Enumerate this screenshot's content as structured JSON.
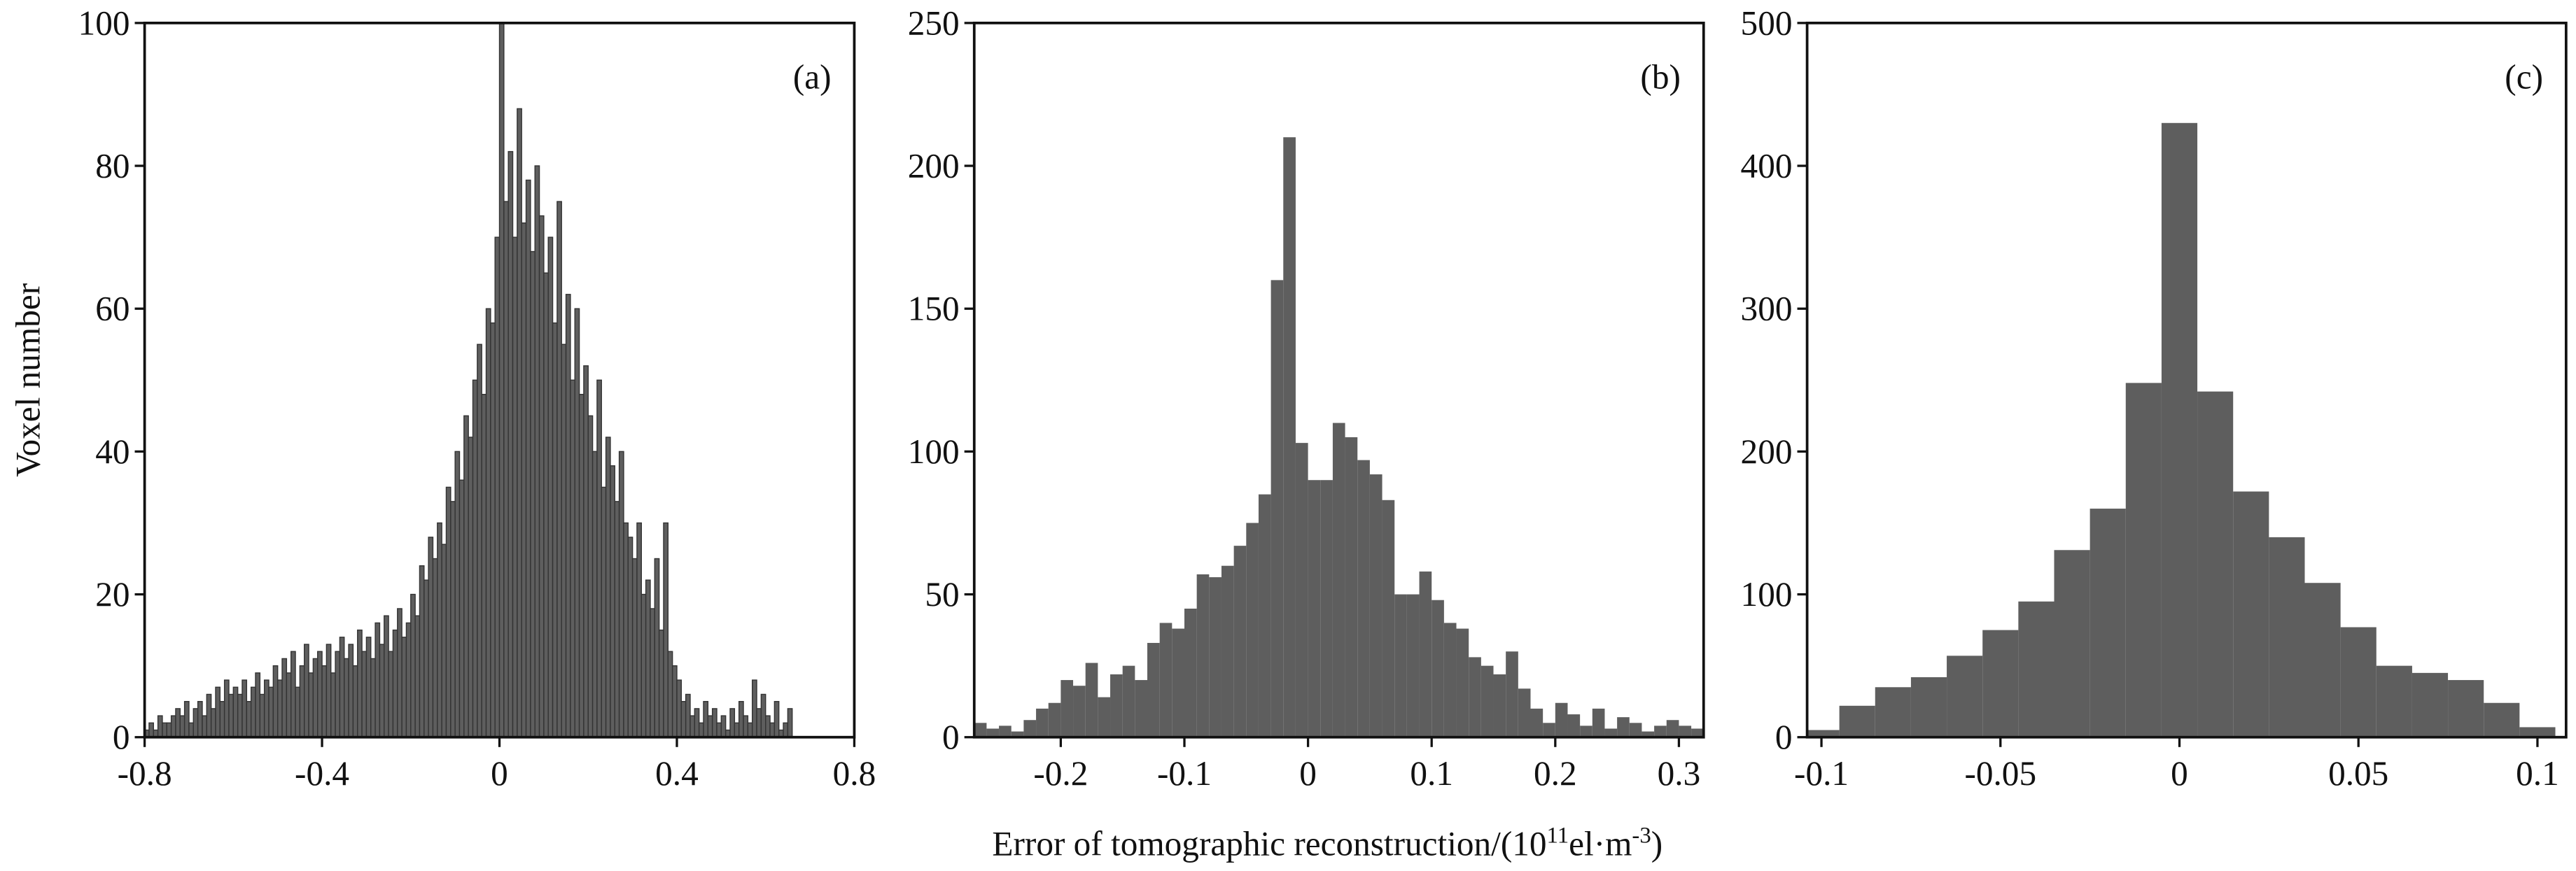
{
  "xlabel": [
    "Error of tomographic reconstruction/(10",
    "11",
    "el·m",
    "-3",
    ")"
  ],
  "chart_data": [
    {
      "type": "histogram",
      "label": "(a)",
      "ylabel": "Voxel number",
      "color": "#5e5e5e",
      "edgecolor": "#333333",
      "xlim": [
        -0.8,
        0.8
      ],
      "ylim": [
        0,
        100
      ],
      "xticks": [
        -0.8,
        -0.4,
        0,
        0.4,
        0.8
      ],
      "yticks": [
        0,
        20,
        40,
        60,
        80,
        100
      ],
      "bins": [
        -0.8,
        -0.79,
        -0.78,
        -0.77,
        -0.76,
        -0.75,
        -0.74,
        -0.73,
        -0.72,
        -0.71,
        -0.7,
        -0.69,
        -0.68,
        -0.67,
        -0.66,
        -0.65,
        -0.64,
        -0.63,
        -0.62,
        -0.61,
        -0.6,
        -0.59,
        -0.58,
        -0.57,
        -0.56,
        -0.55,
        -0.54,
        -0.53,
        -0.52,
        -0.51,
        -0.5,
        -0.49,
        -0.48,
        -0.47,
        -0.46,
        -0.45,
        -0.44,
        -0.43,
        -0.42,
        -0.41,
        -0.4,
        -0.39,
        -0.38,
        -0.37,
        -0.36,
        -0.35,
        -0.34,
        -0.33,
        -0.32,
        -0.31,
        -0.3,
        -0.29,
        -0.28,
        -0.27,
        -0.26,
        -0.25,
        -0.24,
        -0.23,
        -0.22,
        -0.21,
        -0.2,
        -0.19,
        -0.18,
        -0.17,
        -0.16,
        -0.15,
        -0.14,
        -0.13,
        -0.12,
        -0.11,
        -0.1,
        -0.09,
        -0.08,
        -0.07,
        -0.06,
        -0.05,
        -0.04,
        -0.03,
        -0.02,
        -0.01,
        0,
        0.01,
        0.02,
        0.03,
        0.04,
        0.05,
        0.06,
        0.07,
        0.08,
        0.09,
        0.1,
        0.11,
        0.12,
        0.13,
        0.14,
        0.15,
        0.16,
        0.17,
        0.18,
        0.19,
        0.2,
        0.21,
        0.22,
        0.23,
        0.24,
        0.25,
        0.26,
        0.27,
        0.28,
        0.29,
        0.3,
        0.31,
        0.32,
        0.33,
        0.34,
        0.35,
        0.36,
        0.37,
        0.38,
        0.39,
        0.4,
        0.41,
        0.42,
        0.43,
        0.44,
        0.45,
        0.46,
        0.47,
        0.48,
        0.49,
        0.5,
        0.51,
        0.52,
        0.53,
        0.54,
        0.55,
        0.56,
        0.57,
        0.58,
        0.59,
        0.6,
        0.61,
        0.62,
        0.63,
        0.64,
        0.65,
        0.66
      ],
      "counts": [
        1,
        2,
        1,
        3,
        2,
        2,
        3,
        4,
        3,
        5,
        2,
        4,
        5,
        3,
        6,
        4,
        7,
        5,
        8,
        6,
        7,
        6,
        8,
        5,
        7,
        9,
        6,
        8,
        7,
        10,
        8,
        11,
        9,
        12,
        7,
        10,
        13,
        9,
        11,
        12,
        10,
        13,
        9,
        12,
        14,
        11,
        13,
        10,
        15,
        12,
        14,
        11,
        16,
        13,
        17,
        12,
        15,
        18,
        14,
        16,
        20,
        17,
        24,
        22,
        28,
        25,
        30,
        27,
        35,
        33,
        40,
        36,
        45,
        42,
        50,
        55,
        48,
        60,
        58,
        70,
        100,
        75,
        82,
        70,
        88,
        72,
        78,
        68,
        80,
        73,
        65,
        70,
        58,
        75,
        55,
        62,
        50,
        60,
        48,
        52,
        45,
        40,
        50,
        35,
        42,
        38,
        33,
        40,
        30,
        28,
        25,
        30,
        20,
        22,
        18,
        25,
        15,
        30,
        12,
        10,
        8,
        5,
        6,
        3,
        4,
        2,
        5,
        3,
        4,
        2,
        3,
        1,
        4,
        2,
        5,
        3,
        2,
        8,
        4,
        6,
        3,
        2,
        5,
        1,
        2,
        4
      ]
    },
    {
      "type": "histogram",
      "label": "(b)",
      "color": "#5e5e5e",
      "xlim": [
        -0.27,
        0.32
      ],
      "ylim": [
        0,
        250
      ],
      "xticks": [
        -0.2,
        -0.1,
        0,
        0.1,
        0.2,
        0.3
      ],
      "yticks": [
        0,
        50,
        100,
        150,
        200,
        250
      ],
      "bins": [
        -0.27,
        -0.26,
        -0.25,
        -0.24,
        -0.23,
        -0.22,
        -0.21,
        -0.2,
        -0.19,
        -0.18,
        -0.17,
        -0.16,
        -0.15,
        -0.14,
        -0.13,
        -0.12,
        -0.11,
        -0.1,
        -0.09,
        -0.08,
        -0.07,
        -0.06,
        -0.05,
        -0.04,
        -0.03,
        -0.02,
        -0.01,
        0,
        0.01,
        0.02,
        0.03,
        0.04,
        0.05,
        0.06,
        0.07,
        0.08,
        0.09,
        0.1,
        0.11,
        0.12,
        0.13,
        0.14,
        0.15,
        0.16,
        0.17,
        0.18,
        0.19,
        0.2,
        0.21,
        0.22,
        0.23,
        0.24,
        0.25,
        0.26,
        0.27,
        0.28,
        0.29,
        0.3,
        0.31,
        0.32
      ],
      "counts": [
        5,
        3,
        4,
        2,
        6,
        10,
        12,
        20,
        18,
        26,
        14,
        22,
        25,
        20,
        33,
        40,
        38,
        45,
        57,
        56,
        60,
        67,
        75,
        85,
        160,
        210,
        103,
        90,
        90,
        110,
        105,
        97,
        92,
        83,
        50,
        50,
        58,
        48,
        40,
        38,
        28,
        25,
        22,
        30,
        17,
        10,
        5,
        12,
        8,
        4,
        10,
        3,
        7,
        5,
        2,
        4,
        6,
        4,
        3
      ]
    },
    {
      "type": "histogram",
      "label": "(c)",
      "color": "#5e5e5e",
      "xlim": [
        -0.104,
        0.108
      ],
      "ylim": [
        0,
        500
      ],
      "xticks": [
        -0.1,
        -0.05,
        0,
        0.05,
        0.1
      ],
      "yticks": [
        0,
        100,
        200,
        300,
        400,
        500
      ],
      "bins": [
        -0.105,
        -0.095,
        -0.085,
        -0.075,
        -0.065,
        -0.055,
        -0.045,
        -0.035,
        -0.025,
        -0.015,
        -0.005,
        0.005,
        0.015,
        0.025,
        0.035,
        0.045,
        0.055,
        0.065,
        0.075,
        0.085,
        0.095,
        0.105
      ],
      "counts": [
        5,
        22,
        35,
        42,
        57,
        75,
        95,
        131,
        160,
        248,
        430,
        242,
        172,
        140,
        108,
        77,
        50,
        45,
        40,
        24,
        7
      ]
    }
  ]
}
